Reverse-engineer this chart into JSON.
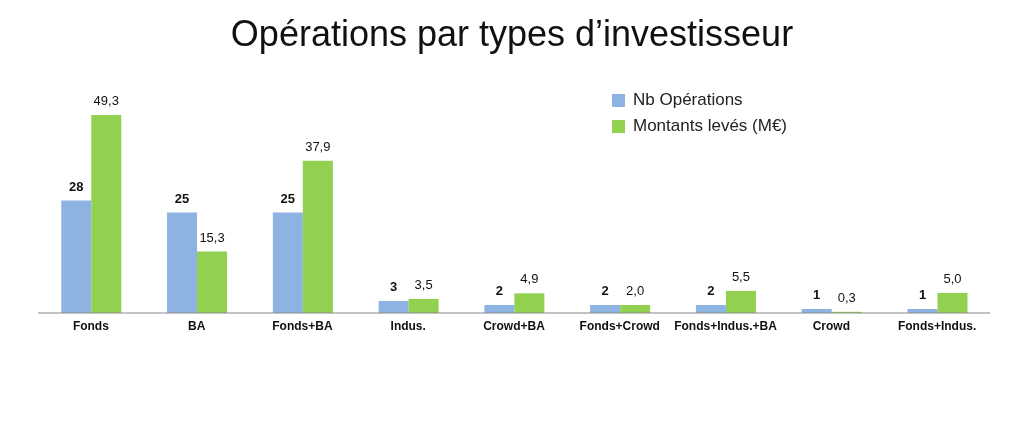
{
  "chart_data": {
    "type": "bar",
    "title": "Opérations par types d’investisseur",
    "categories": [
      "Fonds",
      "BA",
      "Fonds+BA",
      "Indus.",
      "Crowd+BA",
      "Fonds+Crowd",
      "Fonds+Indus.+BA",
      "Crowd",
      "Fonds+Indus."
    ],
    "series": [
      {
        "name": "Nb Opérations",
        "color": "#8db3e2",
        "values": [
          28,
          25,
          25,
          3,
          2,
          2,
          2,
          1,
          1
        ],
        "value_labels": [
          "28",
          "25",
          "25",
          "3",
          "2",
          "2",
          "2",
          "1",
          "1"
        ]
      },
      {
        "name": "Montants levés (M€)",
        "color": "#92d050",
        "values": [
          49.3,
          15.3,
          37.9,
          3.5,
          4.9,
          2.0,
          5.5,
          0.3,
          5.0
        ],
        "value_labels": [
          "49,3",
          "15,3",
          "37,9",
          "3,5",
          "4,9",
          "2,0",
          "5,5",
          "0,3",
          "5,0"
        ]
      }
    ],
    "legend": "top right",
    "grid": false
  }
}
